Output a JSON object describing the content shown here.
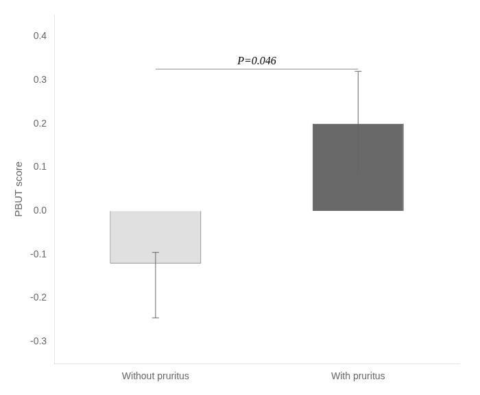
{
  "chart_data": {
    "type": "bar",
    "categories": [
      "Without pruritus",
      "With pruritus"
    ],
    "values": [
      -0.12,
      0.2
    ],
    "errors_upper": [
      0.025,
      0.12
    ],
    "errors_lower": [
      0.125,
      0.115
    ],
    "colors": [
      "#e0e0e0",
      "#696969"
    ],
    "ylabel": "PBUT score",
    "ylim": [
      -0.35,
      0.45
    ],
    "yticks": [
      -0.3,
      -0.2,
      -0.1,
      {
        "value": 0,
        "label": "0.0"
      },
      0.1,
      0.2,
      0.3,
      0.4
    ],
    "grid": false,
    "annotations": [
      {
        "text": "P=0.046",
        "y": 0.325,
        "from": "Without pruritus",
        "to": "With pruritus"
      }
    ]
  }
}
